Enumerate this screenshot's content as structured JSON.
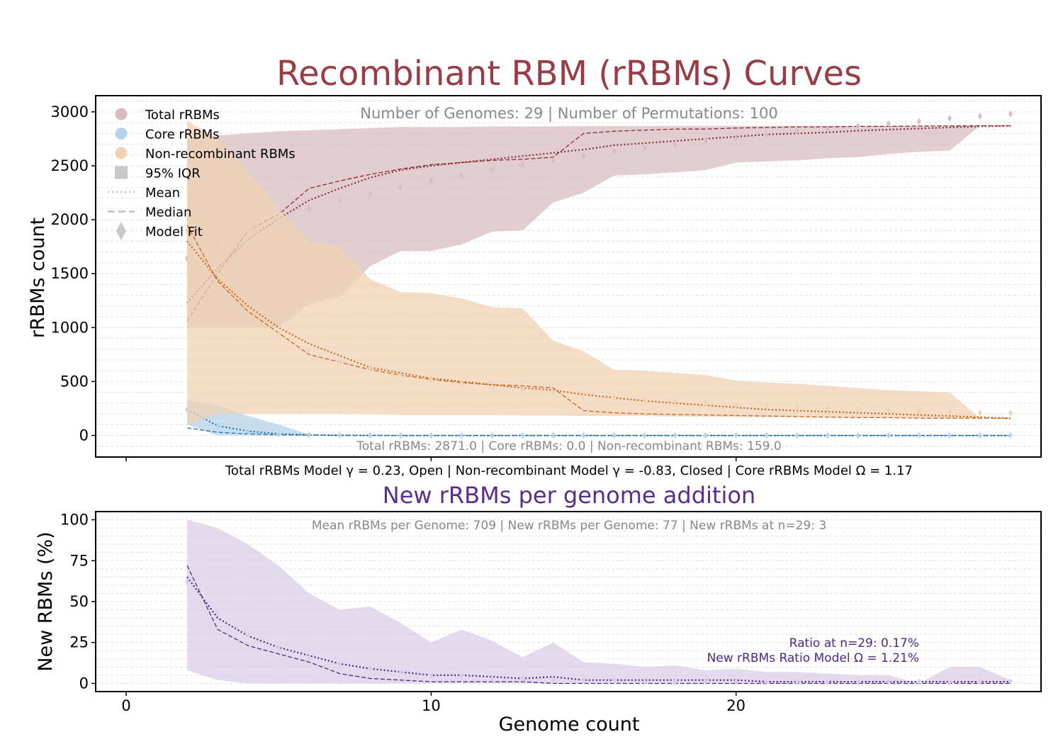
{
  "title_main": "Recombinant RBM (rRBMs) Curves",
  "subtitle_main": "Number of Genomes: 29  |  Number of Permutations: 100",
  "footer_main": "Total rRBMs: 2871.0  |  Core rRBMs: 0.0  |  Non-recombinant RBMs: 159.0",
  "model_line": "Total rRBMs Model γ = 0.23, Open  |  Non-recombinant Model γ = -0.83, Closed  |  Core rRBMs Model Ω = 1.17",
  "title_bottom": "New rRBMs per genome addition",
  "subtitle_bottom": "Mean rRBMs per Genome: 709  |  New rRBMs per Genome: 77  |  New rRBMs at n=29: 3",
  "ratio_line1": "Ratio at n=29: 0.17%",
  "ratio_line2": "New rRBMs Ratio Model Ω = 1.21%",
  "colors": {
    "title_main": "#9a3c46",
    "title_bottom": "#5a2d8a",
    "total": "#8b2a35",
    "total_fill": "#d8bcc0",
    "core": "#1f6fb4",
    "core_fill": "#b6d3ea",
    "nonrec": "#c9651a",
    "nonrec_fill": "#efd2b4",
    "new": "#4b2a84",
    "new_fill": "#d9cde8",
    "legend_gray": "#c8c8c8"
  },
  "chart_data": [
    {
      "type": "line",
      "ylabel": "rRBMs count",
      "xlabel": "",
      "xlim": [
        -1,
        30
      ],
      "ylim": [
        -200,
        3150
      ],
      "yticks": [
        0,
        500,
        1000,
        1500,
        2000,
        2500,
        3000
      ],
      "ytick_labels": [
        "0",
        "500",
        "1000",
        "1500",
        "2000",
        "2500",
        "3000"
      ],
      "grid": true,
      "legend_position": "top-left",
      "legend": [
        {
          "label": "Total rRBMs",
          "marker": "circle",
          "color_key": "total_fill"
        },
        {
          "label": "Core rRBMs",
          "marker": "circle",
          "color_key": "core_fill"
        },
        {
          "label": "Non-recombinant RBMs",
          "marker": "circle",
          "color_key": "nonrec_fill"
        },
        {
          "label": "95% IQR",
          "marker": "square",
          "color_key": "legend_gray"
        },
        {
          "label": "Mean",
          "marker": "dotted",
          "color_key": "legend_gray"
        },
        {
          "label": "Median",
          "marker": "dashed",
          "color_key": "legend_gray"
        },
        {
          "label": "Model Fit",
          "marker": "diamond",
          "color_key": "legend_gray"
        }
      ],
      "x": [
        2,
        3,
        4,
        5,
        6,
        7,
        8,
        9,
        10,
        11,
        12,
        13,
        14,
        15,
        16,
        17,
        18,
        19,
        20,
        21,
        22,
        23,
        24,
        25,
        26,
        27,
        28,
        29
      ],
      "series": [
        {
          "name": "Total rRBMs",
          "color_key": "total",
          "fill_key": "total_fill",
          "band_low": [
            1000,
            1000,
            1000,
            1000,
            1220,
            1280,
            1570,
            1710,
            1710,
            1770,
            1890,
            1900,
            2160,
            2250,
            2410,
            2420,
            2440,
            2460,
            2530,
            2540,
            2550,
            2570,
            2580,
            2610,
            2630,
            2640,
            2871,
            2871
          ],
          "band_high": [
            2750,
            2780,
            2800,
            2820,
            2830,
            2840,
            2850,
            2860,
            2860,
            2860,
            2865,
            2865,
            2865,
            2868,
            2868,
            2868,
            2870,
            2870,
            2870,
            2870,
            2870,
            2871,
            2871,
            2871,
            2871,
            2871,
            2871,
            2871
          ],
          "mean": [
            1230,
            1550,
            1820,
            2010,
            2180,
            2290,
            2390,
            2460,
            2500,
            2530,
            2560,
            2590,
            2620,
            2650,
            2690,
            2710,
            2730,
            2750,
            2770,
            2790,
            2800,
            2810,
            2825,
            2835,
            2845,
            2855,
            2865,
            2871
          ],
          "median": [
            1060,
            1500,
            1900,
            2050,
            2290,
            2360,
            2420,
            2470,
            2510,
            2530,
            2550,
            2560,
            2580,
            2800,
            2820,
            2830,
            2840,
            2840,
            2850,
            2855,
            2860,
            2860,
            2865,
            2865,
            2868,
            2870,
            2871,
            2871
          ],
          "model": [
            1640,
            1790,
            1910,
            2010,
            2100,
            2180,
            2240,
            2300,
            2360,
            2410,
            2460,
            2510,
            2550,
            2590,
            2630,
            2670,
            2700,
            2730,
            2760,
            2790,
            2820,
            2840,
            2870,
            2890,
            2910,
            2940,
            2960,
            2980
          ]
        },
        {
          "name": "Core rRBMs",
          "color_key": "core",
          "fill_key": "core_fill",
          "band_low": [
            100,
            0,
            0,
            0,
            0,
            0,
            0,
            0,
            0,
            0,
            0,
            0,
            0,
            0,
            0,
            0,
            0,
            0,
            0,
            0,
            0,
            0,
            0,
            0,
            0,
            0,
            0,
            0
          ],
          "band_high": [
            330,
            280,
            180,
            100,
            10,
            0,
            0,
            0,
            0,
            0,
            0,
            0,
            0,
            0,
            0,
            0,
            0,
            0,
            0,
            0,
            0,
            0,
            0,
            0,
            0,
            0,
            0,
            0
          ],
          "mean": [
            240,
            90,
            40,
            15,
            5,
            2,
            1,
            0,
            0,
            0,
            0,
            0,
            0,
            0,
            0,
            0,
            0,
            0,
            0,
            0,
            0,
            0,
            0,
            0,
            0,
            0,
            0,
            0
          ],
          "median": [
            70,
            30,
            15,
            5,
            2,
            0,
            0,
            0,
            0,
            0,
            0,
            0,
            0,
            0,
            0,
            0,
            0,
            0,
            0,
            0,
            0,
            0,
            0,
            0,
            0,
            0,
            0,
            0
          ],
          "model": [
            240,
            90,
            35,
            12,
            5,
            2,
            1,
            0,
            0,
            0,
            0,
            0,
            0,
            0,
            0,
            0,
            0,
            0,
            0,
            0,
            0,
            0,
            0,
            0,
            0,
            0,
            0,
            0
          ]
        },
        {
          "name": "Non-recombinant RBMs",
          "color_key": "nonrec",
          "fill_key": "nonrec_fill",
          "band_low": [
            100,
            200,
            200,
            200,
            200,
            200,
            195,
            190,
            190,
            190,
            190,
            185,
            185,
            180,
            180,
            180,
            175,
            175,
            170,
            170,
            170,
            170,
            165,
            165,
            160,
            160,
            159,
            159
          ],
          "band_high": [
            2920,
            2750,
            2450,
            2100,
            1800,
            1750,
            1450,
            1330,
            1320,
            1270,
            1190,
            1180,
            880,
            780,
            610,
            600,
            580,
            560,
            510,
            490,
            480,
            460,
            440,
            420,
            410,
            400,
            159,
            159
          ],
          "mean": [
            1800,
            1450,
            1200,
            1000,
            850,
            740,
            630,
            580,
            530,
            500,
            470,
            440,
            420,
            380,
            350,
            320,
            300,
            280,
            260,
            240,
            230,
            220,
            210,
            200,
            190,
            180,
            170,
            159
          ],
          "median": [
            1950,
            1430,
            1150,
            950,
            750,
            680,
            610,
            560,
            520,
            490,
            470,
            460,
            440,
            230,
            210,
            200,
            195,
            190,
            185,
            180,
            175,
            170,
            165,
            165,
            160,
            160,
            159,
            159
          ],
          "model": [
            1900,
            1390,
            1110,
            940,
            790,
            690,
            620,
            560,
            520,
            480,
            450,
            420,
            400,
            370,
            350,
            330,
            310,
            300,
            280,
            270,
            260,
            250,
            240,
            240,
            230,
            220,
            210,
            210
          ]
        }
      ]
    },
    {
      "type": "line",
      "xlabel": "Genome count",
      "ylabel": "New RBMs (%)",
      "xlim": [
        -1,
        30
      ],
      "ylim": [
        -5,
        105
      ],
      "xticks": [
        0,
        10,
        20
      ],
      "xtick_labels": [
        "0",
        "10",
        "20"
      ],
      "yticks": [
        0,
        25,
        50,
        75,
        100
      ],
      "ytick_labels": [
        "0",
        "25",
        "50",
        "75",
        "100"
      ],
      "grid": true,
      "x": [
        2,
        3,
        4,
        5,
        6,
        7,
        8,
        9,
        10,
        11,
        12,
        13,
        14,
        15,
        16,
        17,
        18,
        19,
        20,
        21,
        22,
        23,
        24,
        25,
        26,
        27,
        28,
        29
      ],
      "series": [
        {
          "name": "New rRBMs",
          "color_key": "new",
          "fill_key": "new_fill",
          "band_low": [
            8,
            2,
            0,
            0,
            0,
            0,
            0,
            0,
            0,
            0,
            0,
            0,
            0,
            0,
            0,
            0,
            0,
            0,
            0,
            0,
            0,
            0,
            0,
            0,
            0,
            0,
            0,
            0
          ],
          "band_high": [
            100,
            95,
            85,
            72,
            55,
            45,
            47,
            37,
            25,
            33,
            26,
            16,
            25,
            13,
            12,
            10,
            11,
            8,
            9,
            7,
            7,
            6,
            5,
            5,
            0,
            10,
            10,
            2
          ],
          "mean": [
            65,
            40,
            29,
            22,
            17,
            12,
            9,
            7,
            5,
            5,
            4,
            3,
            4,
            2,
            2,
            2,
            2,
            2,
            2,
            1,
            1,
            1,
            1,
            1,
            1,
            1,
            1,
            1
          ],
          "median": [
            72,
            33,
            23,
            18,
            13,
            6,
            3,
            2,
            1,
            1,
            1,
            1,
            0,
            0,
            0,
            0,
            0,
            0,
            0,
            0,
            0,
            0,
            0,
            0,
            0,
            0,
            0,
            0
          ],
          "model": [
            62,
            43,
            30,
            22,
            16,
            12,
            9,
            7,
            5,
            4,
            3,
            3,
            2,
            2,
            2,
            1,
            1,
            1,
            1,
            1,
            1,
            1,
            1,
            1,
            1,
            1,
            1,
            1
          ]
        }
      ]
    }
  ]
}
